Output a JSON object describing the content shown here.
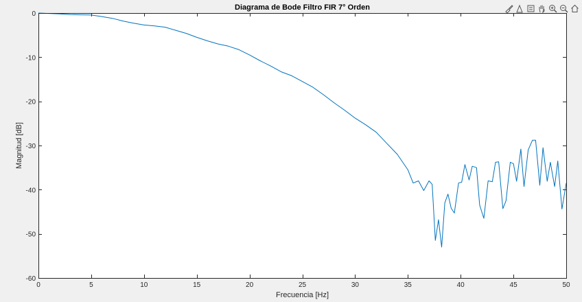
{
  "chart_data": {
    "type": "line",
    "title": "Diagrama de Bode Filtro FIR 7° Orden",
    "xlabel": "Frecuencia [Hz]",
    "ylabel": "Magnitud [dB]",
    "xlim": [
      0,
      50
    ],
    "ylim": [
      -60,
      0
    ],
    "xticks": [
      0,
      5,
      10,
      15,
      20,
      25,
      30,
      35,
      40,
      45,
      50
    ],
    "yticks": [
      0,
      -10,
      -20,
      -30,
      -40,
      -50,
      -60
    ],
    "grid": false,
    "line_color": "#0072bd",
    "series": [
      {
        "x": [
          0,
          1,
          2,
          3,
          4,
          5,
          6,
          7,
          8,
          9,
          10,
          11,
          12,
          13,
          14,
          15,
          16,
          17,
          18,
          19,
          20,
          21,
          22,
          23,
          24,
          25,
          26,
          27,
          28,
          29,
          30,
          31,
          32,
          33,
          34,
          35,
          35.5,
          36,
          36.5,
          37,
          37.3,
          37.6,
          37.9,
          38.2,
          38.5,
          38.8,
          39.1,
          39.4,
          39.8,
          40.1,
          40.4,
          40.8,
          41.1,
          41.5,
          41.8,
          42.2,
          42.6,
          43,
          43.3,
          43.6,
          44,
          44.3,
          44.7,
          45,
          45.3,
          45.7,
          46,
          46.4,
          46.8,
          47.1,
          47.5,
          47.8,
          48.2,
          48.5,
          48.9,
          49.2,
          49.6,
          50
        ],
        "y": [
          0,
          -0.1,
          -0.2,
          -0.35,
          -0.4,
          -0.45,
          -0.8,
          -1.2,
          -1.8,
          -2.3,
          -2.7,
          -2.9,
          -3.2,
          -3.9,
          -4.6,
          -5.5,
          -6.3,
          -7,
          -7.5,
          -8.3,
          -9.5,
          -10.8,
          -12,
          -13.3,
          -14.2,
          -15.5,
          -16.8,
          -18.5,
          -20.3,
          -22,
          -23.8,
          -25.3,
          -27,
          -29.5,
          -32,
          -35.5,
          -38.5,
          -38,
          -40.2,
          -38,
          -38.8,
          -51.5,
          -46.8,
          -53,
          -43,
          -41,
          -44.2,
          -45.3,
          -38.5,
          -38.3,
          -34.3,
          -37.8,
          -34.7,
          -35,
          -43.5,
          -46.5,
          -38,
          -38.2,
          -33.8,
          -33.7,
          -44.3,
          -42.5,
          -33.8,
          -34.1,
          -38.1,
          -30.8,
          -39.3,
          -31,
          -28.8,
          -28.8,
          -39,
          -30.5,
          -38.1,
          -33.8,
          -39.3,
          -33.5,
          -44.4,
          -38.5
        ]
      }
    ]
  },
  "toolbar": {
    "icons": [
      "brush-icon",
      "datatip-icon",
      "restore-view-icon",
      "pan-icon",
      "zoom-in-icon",
      "zoom-out-icon",
      "home-icon"
    ]
  }
}
